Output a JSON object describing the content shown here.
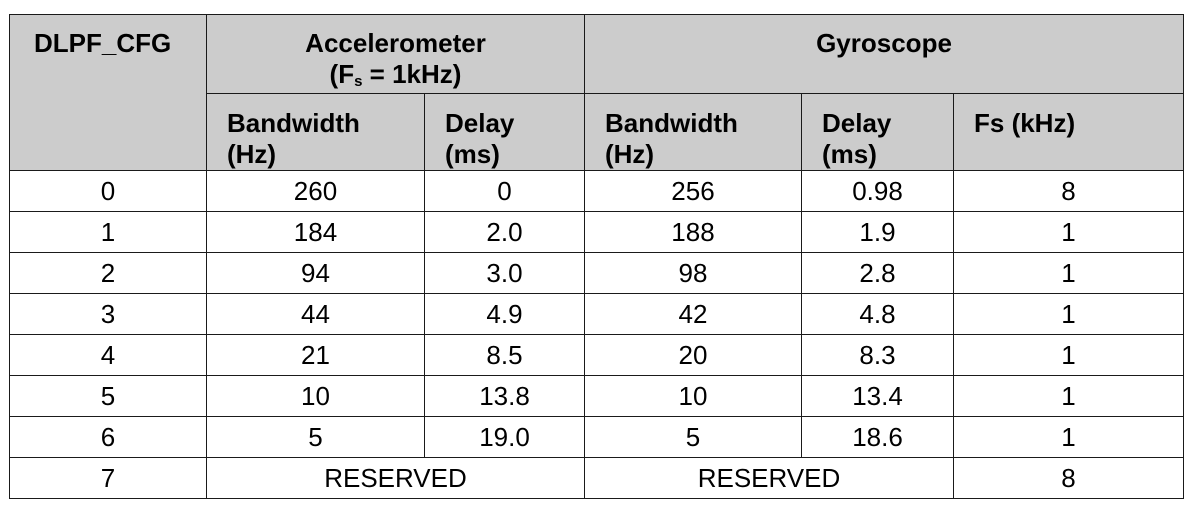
{
  "table": {
    "corner_header": "DLPF_CFG",
    "accel_group": {
      "title": "Accelerometer",
      "fs_prefix": "(F",
      "fs_sub": "s",
      "fs_suffix": " = 1kHz)"
    },
    "gyro_group": {
      "title": "Gyroscope"
    },
    "sub_headers": {
      "accel_bw": [
        "Bandwidth",
        "(Hz)"
      ],
      "accel_delay": [
        "Delay",
        "(ms)"
      ],
      "gyro_bw": [
        "Bandwidth",
        "(Hz)"
      ],
      "gyro_delay": [
        "Delay",
        "(ms)"
      ],
      "gyro_fs": "Fs (kHz)"
    },
    "rows": [
      {
        "cfg": "0",
        "accel_bw": "260",
        "accel_delay": "0",
        "gyro_bw": "256",
        "gyro_delay": "0.98",
        "gyro_fs": "8"
      },
      {
        "cfg": "1",
        "accel_bw": "184",
        "accel_delay": "2.0",
        "gyro_bw": "188",
        "gyro_delay": "1.9",
        "gyro_fs": "1"
      },
      {
        "cfg": "2",
        "accel_bw": "94",
        "accel_delay": "3.0",
        "gyro_bw": "98",
        "gyro_delay": "2.8",
        "gyro_fs": "1"
      },
      {
        "cfg": "3",
        "accel_bw": "44",
        "accel_delay": "4.9",
        "gyro_bw": "42",
        "gyro_delay": "4.8",
        "gyro_fs": "1"
      },
      {
        "cfg": "4",
        "accel_bw": "21",
        "accel_delay": "8.5",
        "gyro_bw": "20",
        "gyro_delay": "8.3",
        "gyro_fs": "1"
      },
      {
        "cfg": "5",
        "accel_bw": "10",
        "accel_delay": "13.8",
        "gyro_bw": "10",
        "gyro_delay": "13.4",
        "gyro_fs": "1"
      },
      {
        "cfg": "6",
        "accel_bw": "5",
        "accel_delay": "19.0",
        "gyro_bw": "5",
        "gyro_delay": "18.6",
        "gyro_fs": "1"
      }
    ],
    "reserved_row": {
      "cfg": "7",
      "accel": "RESERVED",
      "gyro": "RESERVED",
      "gyro_fs": "8"
    },
    "colors": {
      "header_bg": "#cccccc",
      "border": "#1a1a1a"
    }
  }
}
